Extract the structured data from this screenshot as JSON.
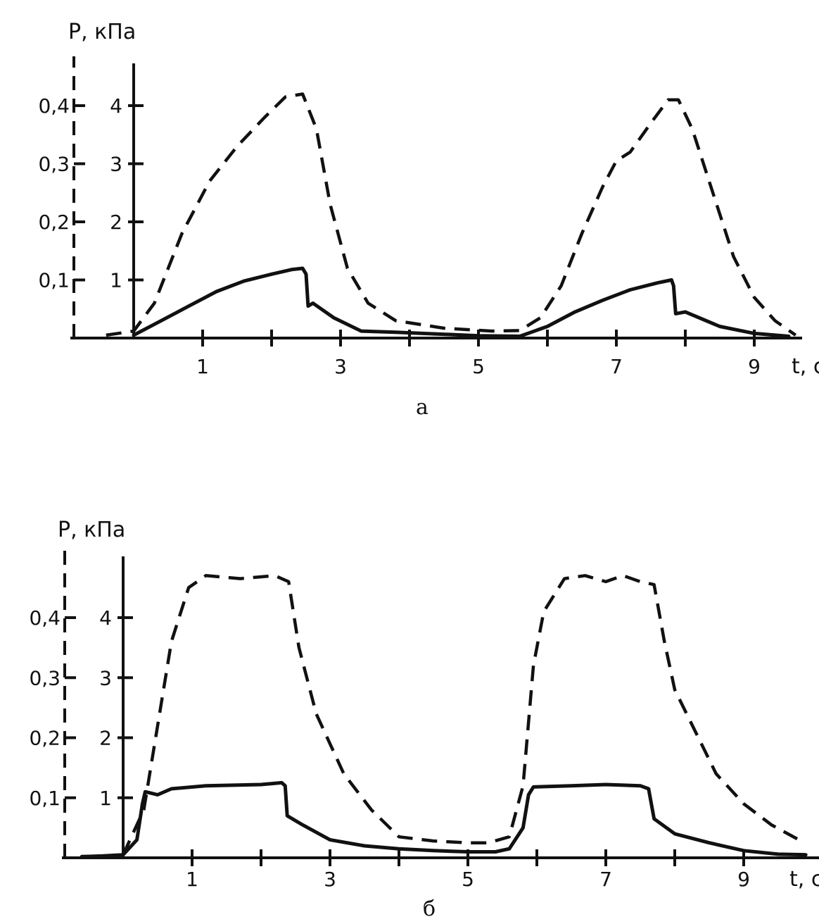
{
  "chart_data": [
    {
      "type": "line",
      "panel_label": "a",
      "title": "",
      "ylabel": "P, кПа",
      "xlabel": "t, c",
      "x_ticks": [
        {
          "value": 1,
          "label": "1"
        },
        {
          "value": 3,
          "label": "3"
        },
        {
          "value": 5,
          "label": "5"
        },
        {
          "value": 7,
          "label": "7"
        },
        {
          "value": 9,
          "label": "9"
        }
      ],
      "y_ticks_right": [
        {
          "value": 1,
          "label": "1"
        },
        {
          "value": 2,
          "label": "2"
        },
        {
          "value": 3,
          "label": "3"
        },
        {
          "value": 4,
          "label": "4"
        }
      ],
      "y_ticks_left": [
        {
          "value": 0.1,
          "label": "0,1"
        },
        {
          "value": 0.2,
          "label": "0,2"
        },
        {
          "value": 0.3,
          "label": "0,3"
        },
        {
          "value": 0.4,
          "label": "0,4"
        }
      ],
      "xlim": [
        -0.9,
        9.9
      ],
      "ylim": [
        0,
        5
      ],
      "grid": false,
      "series": [
        {
          "style": "solid",
          "points": [
            [
              0,
              0.05
            ],
            [
              0.4,
              0.3
            ],
            [
              0.8,
              0.55
            ],
            [
              1.2,
              0.8
            ],
            [
              1.6,
              0.98
            ],
            [
              2.0,
              1.1
            ],
            [
              2.3,
              1.18
            ],
            [
              2.45,
              1.2
            ],
            [
              2.5,
              1.1
            ],
            [
              2.53,
              0.55
            ],
            [
              2.6,
              0.6
            ],
            [
              2.9,
              0.35
            ],
            [
              3.3,
              0.12
            ],
            [
              3.8,
              0.1
            ],
            [
              4.4,
              0.07
            ],
            [
              5.0,
              0.04
            ],
            [
              5.6,
              0.03
            ],
            [
              6.0,
              0.2
            ],
            [
              6.4,
              0.45
            ],
            [
              6.8,
              0.65
            ],
            [
              7.2,
              0.83
            ],
            [
              7.6,
              0.95
            ],
            [
              7.8,
              1.0
            ],
            [
              7.83,
              0.9
            ],
            [
              7.86,
              0.42
            ],
            [
              8.0,
              0.45
            ],
            [
              8.5,
              0.2
            ],
            [
              9.0,
              0.08
            ],
            [
              9.5,
              0.03
            ]
          ]
        },
        {
          "style": "dashed",
          "points": [
            [
              -0.4,
              0.05
            ],
            [
              0,
              0.12
            ],
            [
              0.3,
              0.6
            ],
            [
              0.7,
              1.8
            ],
            [
              1.1,
              2.7
            ],
            [
              1.5,
              3.3
            ],
            [
              1.9,
              3.8
            ],
            [
              2.2,
              4.15
            ],
            [
              2.45,
              4.2
            ],
            [
              2.65,
              3.6
            ],
            [
              2.85,
              2.3
            ],
            [
              3.1,
              1.2
            ],
            [
              3.4,
              0.6
            ],
            [
              3.8,
              0.3
            ],
            [
              4.5,
              0.17
            ],
            [
              5.2,
              0.12
            ],
            [
              5.6,
              0.13
            ],
            [
              5.9,
              0.35
            ],
            [
              6.2,
              0.9
            ],
            [
              6.5,
              1.8
            ],
            [
              6.8,
              2.6
            ],
            [
              7.0,
              3.05
            ],
            [
              7.2,
              3.2
            ],
            [
              7.5,
              3.7
            ],
            [
              7.75,
              4.1
            ],
            [
              7.9,
              4.1
            ],
            [
              8.1,
              3.6
            ],
            [
              8.4,
              2.5
            ],
            [
              8.7,
              1.4
            ],
            [
              9.0,
              0.7
            ],
            [
              9.3,
              0.3
            ],
            [
              9.6,
              0.05
            ]
          ]
        }
      ]
    },
    {
      "type": "line",
      "panel_label": "б",
      "title": "",
      "ylabel": "P, кПа",
      "xlabel": "t, c",
      "x_ticks": [
        {
          "value": 1,
          "label": "1"
        },
        {
          "value": 3,
          "label": "3"
        },
        {
          "value": 5,
          "label": "5"
        },
        {
          "value": 7,
          "label": "7"
        },
        {
          "value": 9,
          "label": "9"
        }
      ],
      "y_ticks_right": [
        {
          "value": 1,
          "label": "1"
        },
        {
          "value": 2,
          "label": "2"
        },
        {
          "value": 3,
          "label": "3"
        },
        {
          "value": 4,
          "label": "4"
        }
      ],
      "y_ticks_left": [
        {
          "value": 0.1,
          "label": "0,1"
        },
        {
          "value": 0.2,
          "label": "0,2"
        },
        {
          "value": 0.3,
          "label": "0,3"
        },
        {
          "value": 0.4,
          "label": "0,4"
        }
      ],
      "xlim": [
        -0.9,
        9.9
      ],
      "ylim": [
        0,
        5
      ],
      "grid": false,
      "series": [
        {
          "style": "solid",
          "points": [
            [
              -0.6,
              0.02
            ],
            [
              -0.3,
              0.03
            ],
            [
              0,
              0.05
            ],
            [
              0.2,
              0.3
            ],
            [
              0.28,
              0.9
            ],
            [
              0.32,
              1.1
            ],
            [
              0.5,
              1.05
            ],
            [
              0.7,
              1.15
            ],
            [
              1.2,
              1.2
            ],
            [
              2.0,
              1.22
            ],
            [
              2.3,
              1.25
            ],
            [
              2.35,
              1.2
            ],
            [
              2.38,
              0.7
            ],
            [
              2.6,
              0.55
            ],
            [
              3.0,
              0.3
            ],
            [
              3.5,
              0.2
            ],
            [
              4.0,
              0.15
            ],
            [
              4.5,
              0.12
            ],
            [
              5.0,
              0.1
            ],
            [
              5.4,
              0.1
            ],
            [
              5.6,
              0.15
            ],
            [
              5.8,
              0.5
            ],
            [
              5.88,
              1.05
            ],
            [
              5.95,
              1.18
            ],
            [
              6.5,
              1.2
            ],
            [
              7.0,
              1.22
            ],
            [
              7.5,
              1.2
            ],
            [
              7.62,
              1.15
            ],
            [
              7.7,
              0.65
            ],
            [
              8.0,
              0.4
            ],
            [
              8.5,
              0.25
            ],
            [
              9.0,
              0.12
            ],
            [
              9.5,
              0.06
            ],
            [
              9.9,
              0.05
            ]
          ]
        },
        {
          "style": "dashed",
          "points": [
            [
              0,
              0.05
            ],
            [
              0.3,
              0.8
            ],
            [
              0.5,
              2.2
            ],
            [
              0.7,
              3.6
            ],
            [
              0.95,
              4.5
            ],
            [
              1.2,
              4.7
            ],
            [
              1.7,
              4.65
            ],
            [
              2.2,
              4.7
            ],
            [
              2.4,
              4.6
            ],
            [
              2.55,
              3.5
            ],
            [
              2.8,
              2.4
            ],
            [
              3.2,
              1.4
            ],
            [
              3.6,
              0.8
            ],
            [
              4.0,
              0.35
            ],
            [
              4.5,
              0.28
            ],
            [
              5.0,
              0.25
            ],
            [
              5.3,
              0.25
            ],
            [
              5.6,
              0.35
            ],
            [
              5.8,
              1.2
            ],
            [
              5.95,
              3.2
            ],
            [
              6.1,
              4.1
            ],
            [
              6.4,
              4.65
            ],
            [
              6.7,
              4.7
            ],
            [
              7.0,
              4.6
            ],
            [
              7.25,
              4.7
            ],
            [
              7.5,
              4.6
            ],
            [
              7.7,
              4.55
            ],
            [
              7.85,
              3.6
            ],
            [
              8.0,
              2.8
            ],
            [
              8.3,
              2.1
            ],
            [
              8.6,
              1.4
            ],
            [
              9.0,
              0.9
            ],
            [
              9.4,
              0.55
            ],
            [
              9.8,
              0.3
            ]
          ]
        }
      ]
    }
  ]
}
